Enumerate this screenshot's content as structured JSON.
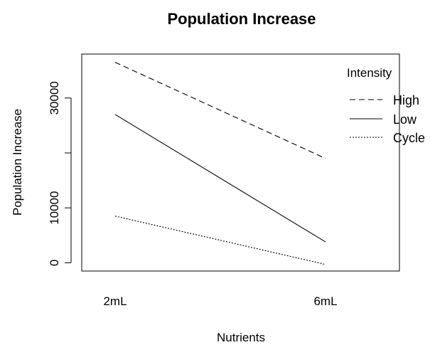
{
  "chart_data": {
    "type": "line",
    "title": "Population Increase",
    "xlabel": "Nutrients",
    "ylabel": "Population Increase",
    "categories": [
      "2mL",
      "6mL"
    ],
    "ylim": [
      -1500,
      38000
    ],
    "yticks": [
      0,
      10000,
      20000,
      30000
    ],
    "ytick_labels": [
      "0",
      "10000",
      "",
      "30000"
    ],
    "grid": false,
    "legend": {
      "title": "Intensity",
      "placement": "top-right"
    },
    "series": [
      {
        "name": "High",
        "values": [
          36500,
          19000
        ],
        "dash": "dashed",
        "color": "#000000"
      },
      {
        "name": "Low",
        "values": [
          27000,
          3800
        ],
        "dash": "solid",
        "color": "#000000"
      },
      {
        "name": "Cycle",
        "values": [
          8500,
          -300
        ],
        "dash": "dotted",
        "color": "#000000"
      }
    ]
  }
}
